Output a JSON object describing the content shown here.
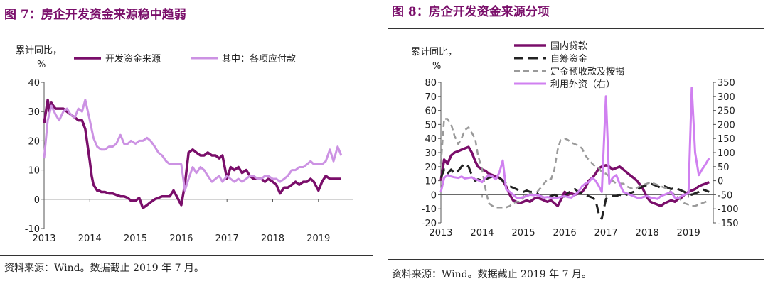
{
  "left": {
    "title": "图 7：房企开发资金来源稳中趋弱",
    "source": "资料来源：Wind。数据截止 2019 年 7 月。"
  },
  "right": {
    "title": "图 8：房企开发资金来源分项",
    "source": "资料来源：Wind。数据截止 2019 年 7 月。"
  },
  "chart_data": [
    {
      "type": "line",
      "ylabel_line1": "累计同比，",
      "ylabel_line2": "%",
      "ylim": [
        -10,
        40
      ],
      "yticks": [
        -10,
        0,
        10,
        20,
        30,
        40
      ],
      "xlim": [
        2013.0,
        2019.75
      ],
      "xticks": [
        2013,
        2014,
        2015,
        2016,
        2017,
        2018,
        2019
      ],
      "legend_position": "top",
      "series": [
        {
          "name": "开发资金来源",
          "color": "#7a0e6a",
          "x": [
            2013.0,
            2013.08,
            2013.12,
            2013.16,
            2013.2,
            2013.25,
            2013.33,
            2013.42,
            2013.5,
            2013.58,
            2013.67,
            2013.75,
            2013.83,
            2013.9,
            2014.0,
            2014.04,
            2014.08,
            2014.12,
            2014.16,
            2014.2,
            2014.25,
            2014.33,
            2014.42,
            2014.5,
            2014.58,
            2014.67,
            2014.75,
            2014.83,
            2014.9,
            2015.0,
            2015.08,
            2015.16,
            2015.25,
            2015.33,
            2015.42,
            2015.5,
            2015.58,
            2015.67,
            2015.75,
            2015.83,
            2015.9,
            2016.0,
            2016.08,
            2016.16,
            2016.25,
            2016.33,
            2016.42,
            2016.5,
            2016.58,
            2016.67,
            2016.75,
            2016.83,
            2016.9,
            2017.0,
            2017.08,
            2017.16,
            2017.25,
            2017.33,
            2017.42,
            2017.5,
            2017.58,
            2017.67,
            2017.75,
            2017.83,
            2017.9,
            2018.0,
            2018.08,
            2018.16,
            2018.25,
            2018.33,
            2018.42,
            2018.5,
            2018.58,
            2018.67,
            2018.75,
            2018.83,
            2018.9,
            2019.0,
            2019.08,
            2019.16,
            2019.25,
            2019.33,
            2019.42,
            2019.5
          ],
          "y": [
            26,
            34,
            30,
            33,
            32,
            31,
            31,
            31,
            30,
            29,
            28,
            27,
            27,
            24,
            13,
            8,
            5,
            4,
            3,
            3,
            2.5,
            2.5,
            2,
            2,
            1.5,
            1,
            1,
            0.5,
            -0.5,
            -0.5,
            0.5,
            -3,
            -2,
            -1,
            0,
            0.5,
            1,
            1,
            1,
            3,
            1,
            -2,
            5,
            16,
            17,
            16,
            15,
            15,
            16,
            15,
            15,
            14,
            15,
            7,
            11,
            10,
            11,
            9,
            10,
            8,
            7,
            7,
            7,
            6,
            7,
            6,
            5,
            2,
            4,
            4,
            5,
            6,
            5,
            6,
            6,
            7,
            6,
            3,
            6,
            8,
            7,
            7,
            7,
            7
          ]
        },
        {
          "name": "其中：各项应付款",
          "color": "#cc92e3",
          "x": [
            2013.0,
            2013.08,
            2013.16,
            2013.25,
            2013.33,
            2013.42,
            2013.5,
            2013.58,
            2013.67,
            2013.75,
            2013.83,
            2013.9,
            2014.0,
            2014.08,
            2014.16,
            2014.25,
            2014.33,
            2014.42,
            2014.5,
            2014.58,
            2014.67,
            2014.75,
            2014.83,
            2014.9,
            2015.0,
            2015.08,
            2015.16,
            2015.25,
            2015.33,
            2015.42,
            2015.5,
            2015.58,
            2015.67,
            2015.75,
            2015.83,
            2015.9,
            2016.0,
            2016.08,
            2016.16,
            2016.25,
            2016.33,
            2016.42,
            2016.5,
            2016.58,
            2016.67,
            2016.75,
            2016.83,
            2016.9,
            2017.0,
            2017.08,
            2017.16,
            2017.25,
            2017.33,
            2017.42,
            2017.5,
            2017.58,
            2017.67,
            2017.75,
            2017.83,
            2017.9,
            2018.0,
            2018.08,
            2018.16,
            2018.25,
            2018.33,
            2018.42,
            2018.5,
            2018.58,
            2018.67,
            2018.75,
            2018.83,
            2018.9,
            2019.0,
            2019.08,
            2019.16,
            2019.25,
            2019.33,
            2019.42,
            2019.5
          ],
          "y": [
            14,
            27,
            32,
            29,
            27,
            30,
            31,
            29,
            28,
            31,
            30,
            34,
            27,
            21,
            18,
            17,
            17,
            18,
            18,
            19,
            22,
            19,
            19,
            20,
            19,
            20,
            20,
            21,
            20,
            18,
            16,
            15,
            13,
            12,
            12,
            12,
            12,
            3,
            7,
            11,
            9,
            11,
            10,
            8,
            6,
            7,
            8,
            6,
            8,
            7,
            6,
            7,
            6,
            7,
            8,
            8,
            7,
            7,
            8,
            8,
            7,
            7,
            6,
            7,
            8,
            10,
            10,
            11,
            11,
            12,
            13,
            12,
            12,
            12,
            13,
            17,
            13,
            18,
            15
          ]
        }
      ]
    },
    {
      "type": "line",
      "ylabel_line1": "累计同比，",
      "ylabel_line2": "%",
      "ylim": [
        -20,
        80
      ],
      "yticks": [
        -20,
        -10,
        0,
        10,
        20,
        30,
        40,
        50,
        60,
        70,
        80
      ],
      "y2lim": [
        -150,
        350
      ],
      "y2ticks": [
        -150,
        -100,
        -50,
        0,
        50,
        100,
        150,
        200,
        250,
        300,
        350
      ],
      "xlim": [
        2013.0,
        2019.6
      ],
      "xticks": [
        2013,
        2014,
        2015,
        2016,
        2017,
        2018,
        2019
      ],
      "legend_position": "top-left",
      "series": [
        {
          "name": "国内贷款",
          "color": "#7a0e6a",
          "dash": "",
          "axis": "left",
          "x": [
            2013.0,
            2013.08,
            2013.16,
            2013.25,
            2013.33,
            2013.42,
            2013.5,
            2013.58,
            2013.67,
            2013.75,
            2013.83,
            2013.9,
            2014.0,
            2014.08,
            2014.16,
            2014.25,
            2014.33,
            2014.42,
            2014.5,
            2014.58,
            2014.67,
            2014.75,
            2014.83,
            2014.9,
            2015.0,
            2015.08,
            2015.16,
            2015.25,
            2015.33,
            2015.42,
            2015.5,
            2015.58,
            2015.67,
            2015.75,
            2015.83,
            2015.9,
            2016.0,
            2016.08,
            2016.16,
            2016.25,
            2016.33,
            2016.42,
            2016.5,
            2016.58,
            2016.67,
            2016.75,
            2016.83,
            2016.9,
            2017.0,
            2017.08,
            2017.16,
            2017.25,
            2017.33,
            2017.42,
            2017.5,
            2017.58,
            2017.67,
            2017.75,
            2017.83,
            2017.9,
            2018.0,
            2018.08,
            2018.16,
            2018.25,
            2018.33,
            2018.42,
            2018.5,
            2018.58,
            2018.67,
            2018.75,
            2018.83,
            2018.9,
            2019.0,
            2019.08,
            2019.16,
            2019.25,
            2019.33,
            2019.42,
            2019.5
          ],
          "y": [
            10,
            25,
            22,
            28,
            30,
            31,
            32,
            33,
            34,
            30,
            24,
            20,
            18,
            17,
            15,
            14,
            13,
            12,
            10,
            6,
            0,
            -4,
            -5,
            -6,
            -5,
            -4,
            -5,
            -3,
            -2,
            -3,
            -4,
            -5,
            -4,
            -6,
            -8,
            -4,
            2,
            0,
            1,
            0,
            1,
            2,
            5,
            10,
            12,
            15,
            19,
            20,
            21,
            20,
            18,
            19,
            20,
            18,
            16,
            14,
            12,
            10,
            7,
            4,
            -2,
            -5,
            -6,
            -7,
            -8,
            -6,
            -5,
            -4,
            -5,
            -3,
            -2,
            0,
            2,
            3,
            4,
            6,
            7,
            8,
            9
          ]
        },
        {
          "name": "自筹资金",
          "color": "#222222",
          "dash": "13 7",
          "axis": "left",
          "x": [
            2013.0,
            2013.08,
            2013.16,
            2013.25,
            2013.33,
            2013.42,
            2013.5,
            2013.58,
            2013.67,
            2013.75,
            2013.83,
            2013.9,
            2014.0,
            2014.08,
            2014.16,
            2014.25,
            2014.33,
            2014.42,
            2014.5,
            2014.58,
            2014.67,
            2014.75,
            2014.83,
            2014.9,
            2015.0,
            2015.08,
            2015.16,
            2015.25,
            2015.33,
            2015.42,
            2015.5,
            2015.58,
            2015.67,
            2015.75,
            2015.83,
            2015.9,
            2016.0,
            2016.08,
            2016.16,
            2016.25,
            2016.33,
            2016.42,
            2016.5,
            2016.58,
            2016.67,
            2016.75,
            2016.83,
            2016.9,
            2017.0,
            2017.08,
            2017.16,
            2017.25,
            2017.33,
            2017.42,
            2017.5,
            2017.58,
            2017.67,
            2017.75,
            2017.83,
            2017.9,
            2018.0,
            2018.08,
            2018.16,
            2018.25,
            2018.33,
            2018.42,
            2018.5,
            2018.58,
            2018.67,
            2018.75,
            2018.83,
            2018.9,
            2019.0,
            2019.08,
            2019.16,
            2019.25,
            2019.33,
            2019.42,
            2019.5
          ],
          "y": [
            12,
            18,
            15,
            18,
            15,
            17,
            20,
            22,
            20,
            14,
            10,
            11,
            10,
            11,
            12,
            13,
            12,
            12,
            10,
            8,
            6,
            5,
            4,
            3,
            2,
            3,
            2,
            2,
            1,
            -1,
            -2,
            -2,
            -1,
            0,
            -1,
            -2,
            -1,
            1,
            3,
            4,
            2,
            1,
            0,
            -1,
            -2,
            -4,
            -14,
            -17,
            -3,
            -2,
            -1,
            -1,
            0,
            -1,
            0,
            1,
            2,
            3,
            5,
            6,
            7,
            8,
            7,
            6,
            5,
            6,
            5,
            4,
            5,
            4,
            3,
            2,
            1,
            0,
            1,
            2,
            4,
            3,
            2
          ]
        },
        {
          "name": "定金预收款及按揭",
          "color": "#9a9a9a",
          "dash": "8 5",
          "axis": "left",
          "x": [
            2013.0,
            2013.08,
            2013.16,
            2013.25,
            2013.33,
            2013.42,
            2013.5,
            2013.58,
            2013.67,
            2013.75,
            2013.83,
            2013.9,
            2014.0,
            2014.08,
            2014.16,
            2014.25,
            2014.33,
            2014.42,
            2014.5,
            2014.58,
            2014.67,
            2014.75,
            2014.83,
            2014.9,
            2015.0,
            2015.08,
            2015.16,
            2015.25,
            2015.33,
            2015.42,
            2015.5,
            2015.58,
            2015.67,
            2015.75,
            2015.83,
            2015.9,
            2016.0,
            2016.08,
            2016.16,
            2016.25,
            2016.33,
            2016.42,
            2016.5,
            2016.58,
            2016.67,
            2016.75,
            2016.83,
            2016.9,
            2017.0,
            2017.08,
            2017.16,
            2017.25,
            2017.33,
            2017.42,
            2017.5,
            2017.58,
            2017.67,
            2017.75,
            2017.83,
            2017.9,
            2018.0,
            2018.08,
            2018.16,
            2018.25,
            2018.33,
            2018.42,
            2018.5,
            2018.58,
            2018.67,
            2018.75,
            2018.83,
            2018.9,
            2019.0,
            2019.08,
            2019.16,
            2019.25,
            2019.33,
            2019.42,
            2019.5
          ],
          "y": [
            22,
            54,
            54,
            50,
            42,
            36,
            40,
            46,
            48,
            44,
            40,
            28,
            18,
            4,
            -6,
            -8,
            -9,
            -9,
            -9,
            -9,
            -8,
            -6,
            -5,
            -5,
            -2,
            0,
            1,
            0,
            2,
            5,
            8,
            11,
            11,
            18,
            32,
            39,
            40,
            39,
            37,
            36,
            35,
            33,
            28,
            25,
            22,
            20,
            19,
            16,
            15,
            13,
            10,
            8,
            8,
            8,
            6,
            5,
            4,
            5,
            6,
            7,
            8,
            9,
            8,
            7,
            6,
            5,
            4,
            2,
            0,
            -2,
            -4,
            -6,
            -7,
            -8,
            -8,
            -7,
            -6,
            -5,
            -4
          ]
        },
        {
          "name": "利用外资（右）",
          "color": "#d080f0",
          "dash": "",
          "axis": "right",
          "x": [
            2013.0,
            2013.08,
            2013.16,
            2013.25,
            2013.33,
            2013.42,
            2013.5,
            2013.58,
            2013.67,
            2013.75,
            2013.83,
            2013.9,
            2014.0,
            2014.08,
            2014.16,
            2014.25,
            2014.33,
            2014.42,
            2014.5,
            2014.58,
            2014.67,
            2014.75,
            2014.83,
            2014.9,
            2015.0,
            2015.08,
            2015.16,
            2015.25,
            2015.33,
            2015.42,
            2015.5,
            2015.58,
            2015.67,
            2015.75,
            2015.83,
            2015.9,
            2016.0,
            2016.08,
            2016.16,
            2016.25,
            2016.33,
            2016.42,
            2016.5,
            2016.58,
            2016.67,
            2016.75,
            2016.83,
            2016.9,
            2017.0,
            2017.08,
            2017.16,
            2017.25,
            2017.33,
            2017.42,
            2017.5,
            2017.58,
            2017.67,
            2017.75,
            2017.83,
            2017.9,
            2018.0,
            2018.08,
            2018.16,
            2018.25,
            2018.33,
            2018.42,
            2018.5,
            2018.58,
            2018.67,
            2018.75,
            2018.83,
            2018.9,
            2019.0,
            2019.08,
            2019.16,
            2019.25,
            2019.33,
            2019.42,
            2019.5
          ],
          "y": [
            -40,
            10,
            20,
            15,
            12,
            10,
            15,
            8,
            10,
            12,
            5,
            2,
            -5,
            10,
            20,
            15,
            5,
            30,
            72,
            -30,
            -40,
            -50,
            -60,
            -62,
            -58,
            -55,
            -50,
            -52,
            -50,
            -55,
            -60,
            -58,
            -60,
            -62,
            -60,
            -58,
            -55,
            -58,
            -60,
            -50,
            -40,
            -20,
            -10,
            -5,
            10,
            0,
            -20,
            -40,
            300,
            -10,
            10,
            20,
            -10,
            -40,
            -45,
            -50,
            -55,
            -60,
            -62,
            -58,
            -55,
            -60,
            -62,
            -65,
            -55,
            -50,
            -45,
            -40,
            -60,
            -62,
            -55,
            -50,
            -45,
            330,
            100,
            20,
            40,
            60,
            80
          ]
        }
      ]
    }
  ]
}
